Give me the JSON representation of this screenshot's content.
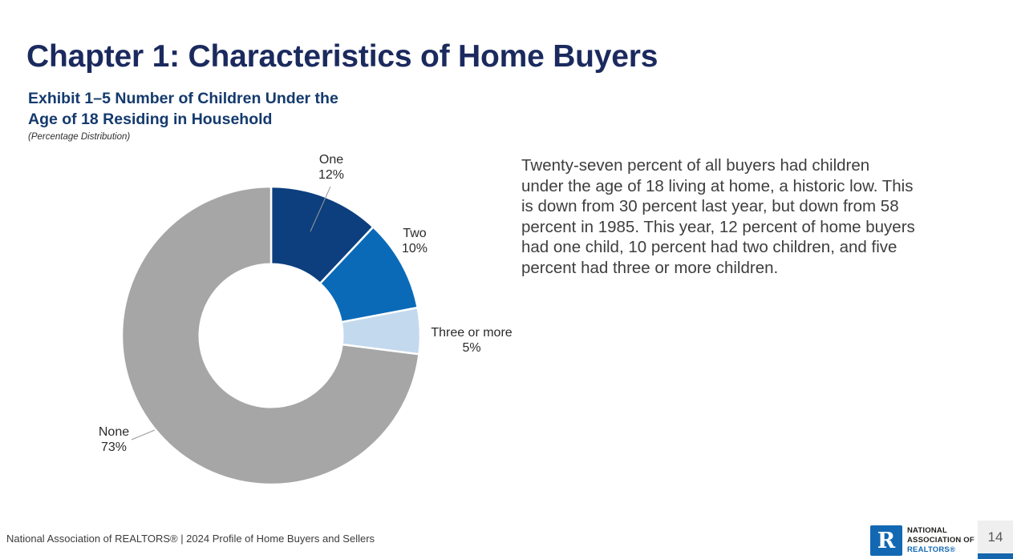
{
  "header": {
    "title": "Chapter 1: Characteristics of Home Buyers"
  },
  "exhibit": {
    "title_line1": "Exhibit 1–5 Number of Children Under the",
    "title_line2": "Age of 18 Residing in Household",
    "subtitle": "(Percentage Distribution)"
  },
  "chart_data": {
    "type": "pie",
    "subtype": "donut",
    "title": "Exhibit 1–5 Number of Children Under the Age of 18 Residing in Household",
    "subtitle": "(Percentage Distribution)",
    "categories": [
      "One",
      "Two",
      "Three or more",
      "None"
    ],
    "values": [
      12,
      10,
      5,
      73
    ],
    "unit": "percent",
    "labels_display": [
      "12%",
      "10%",
      "5%",
      "73%"
    ],
    "colors": [
      "#0d3f7e",
      "#0a6ab8",
      "#c3d9ee",
      "#a6a6a6"
    ],
    "start_angle_deg": -90,
    "direction": "clockwise",
    "inner_radius_ratio": 0.48,
    "legend": "none",
    "data_labels": "outside"
  },
  "body_text": {
    "lines": [
      "Twenty-seven percent of all buyers had children",
      "under the age of 18 living at home, a historic low. This",
      "is down from 30 percent last year, but down from 58",
      "percent in 1985. This year, 12 percent of home buyers",
      "had one child, 10 percent had two children, and five",
      "percent had three or more children."
    ]
  },
  "footer": {
    "source": "National Association of REALTORS® | 2024 Profile of Home Buyers and Sellers",
    "logo": {
      "letter": "R",
      "line1": "NATIONAL",
      "line2": "ASSOCIATION OF",
      "line3": "REALTORS®",
      "blue": "#1268b3"
    },
    "page_number": "14"
  }
}
